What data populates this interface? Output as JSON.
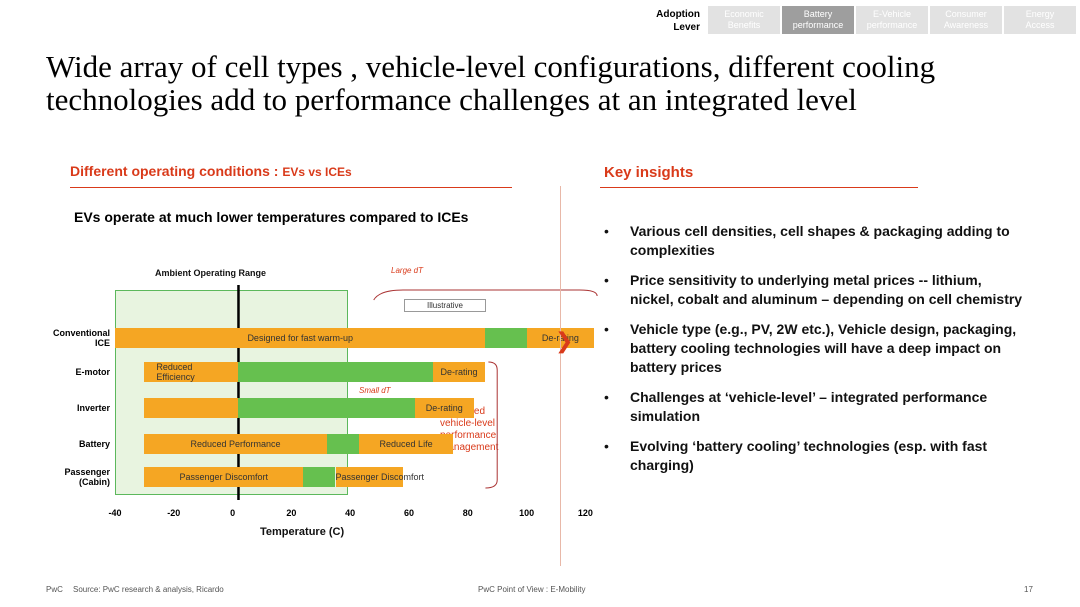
{
  "nav": {
    "label": "Adoption\nLever",
    "tabs": [
      {
        "label": "Economic\nBenefits",
        "active": false
      },
      {
        "label": "Battery\nperformance",
        "active": true
      },
      {
        "label": "E-Vehicle\nperformance",
        "active": false
      },
      {
        "label": "Consumer\nAwareness",
        "active": false
      },
      {
        "label": "Energy\nAccess",
        "active": false
      }
    ]
  },
  "title": "Wide array of cell types , vehicle-level configurations, different cooling technologies add to performance challenges at an integrated level",
  "left_section": {
    "heading": "Different operating conditions : ",
    "heading_small": "EVs vs ICEs",
    "subtitle": "EVs operate at much lower temperatures compared to ICEs"
  },
  "right_section": {
    "heading": "Key insights",
    "insights": [
      "Various cell densities, cell shapes & packaging adding to complexities",
      "Price sensitivity to underlying metal prices -- lithium, nickel, cobalt and aluminum – depending on cell chemistry",
      "Vehicle type (e.g., PV, 2W etc.), Vehicle design, packaging, battery cooling technologies will have a deep impact on battery prices",
      "Challenges at ‘vehicle-level’ – integrated performance simulation",
      "Evolving ‘battery cooling’ technologies (esp. with fast charging)"
    ]
  },
  "chart_data": {
    "type": "bar",
    "xlabel": "Temperature (C)",
    "x_ticks": [
      "-40",
      "-20",
      "0",
      "20",
      "40",
      "60",
      "80",
      "100",
      "120"
    ],
    "x_tick_values": [
      -40,
      -20,
      0,
      20,
      40,
      60,
      80,
      100,
      120
    ],
    "categories": [
      "Conventional ICE",
      "E-motor",
      "Inverter",
      "Battery",
      "Passenger (Cabin)"
    ],
    "annotations": {
      "ambient": "Ambient Operating Range",
      "large_dt": "Large dT",
      "small_dt": "Small dT",
      "illustrative": "Illustrative",
      "integrated": "Integrated vehicle-level performance management"
    },
    "colors": {
      "orange": "#f5a623",
      "green": "#66c04f",
      "ambient_bg": "#e8f4e0",
      "ambient_border": "#5cb85c"
    },
    "segments": [
      {
        "row": 0,
        "x0": -40,
        "x1": 86,
        "color": "orange",
        "label": "Designed for fast warm-up"
      },
      {
        "row": 0,
        "x0": 86,
        "x1": 100,
        "color": "green",
        "label": ""
      },
      {
        "row": 0,
        "x0": 100,
        "x1": 123,
        "color": "orange",
        "label": "De-rating"
      },
      {
        "row": 1,
        "x0": -30,
        "x1": 2,
        "color": "orange",
        "label": "Reduced Efficiency"
      },
      {
        "row": 1,
        "x0": 2,
        "x1": 68,
        "color": "green",
        "label": ""
      },
      {
        "row": 1,
        "x0": 68,
        "x1": 86,
        "color": "orange",
        "label": "De-rating"
      },
      {
        "row": 2,
        "x0": -30,
        "x1": 2,
        "color": "orange",
        "label": ""
      },
      {
        "row": 2,
        "x0": 2,
        "x1": 62,
        "color": "green",
        "label": ""
      },
      {
        "row": 2,
        "x0": 62,
        "x1": 82,
        "color": "orange",
        "label": "De-rating"
      },
      {
        "row": 3,
        "x0": -30,
        "x1": 32,
        "color": "orange",
        "label": "Reduced Performance"
      },
      {
        "row": 3,
        "x0": 32,
        "x1": 43,
        "color": "green",
        "label": ""
      },
      {
        "row": 3,
        "x0": 43,
        "x1": 75,
        "color": "orange",
        "label": "Reduced Life"
      },
      {
        "row": 4,
        "x0": -30,
        "x1": 24,
        "color": "orange",
        "label": "Passenger Discomfort"
      },
      {
        "row": 4,
        "x0": 24,
        "x1": 35,
        "color": "green",
        "label": ""
      },
      {
        "row": 4,
        "x0": 35,
        "x1": 58,
        "color": "orange",
        "label": "Passenger Discomfort"
      }
    ]
  },
  "footer": {
    "brand": "PwC",
    "source": "Source: PwC research & analysis, Ricardo",
    "center": "PwC Point of View : E-Mobility",
    "page": "17"
  }
}
